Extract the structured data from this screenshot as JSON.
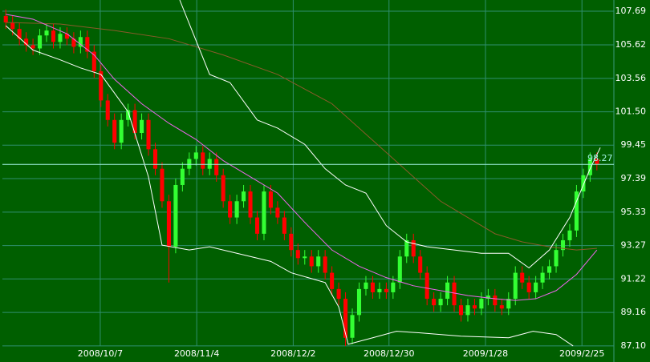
{
  "chart_data": {
    "type": "candlestick",
    "xlim": [
      -0.5,
      89.5
    ],
    "xticks": [
      {
        "value": 13.9,
        "label": "2008/10/7"
      },
      {
        "value": 28.1,
        "label": "2008/11/4"
      },
      {
        "value": 42.3,
        "label": "2008/12/2"
      },
      {
        "value": 56.4,
        "label": "2008/12/30"
      },
      {
        "value": 70.6,
        "label": "2009/1/28"
      },
      {
        "value": 84.8,
        "label": "2009/2/25"
      }
    ],
    "ylim": [
      86.11,
      108.38
    ],
    "yticks": [
      {
        "value": 87.1,
        "label": "87.10"
      },
      89.16,
      91.22,
      93.27,
      95.33,
      97.39,
      99.45,
      {
        "value": 101.5,
        "label": "101.50"
      },
      103.56,
      105.62,
      107.69
    ],
    "grid": true,
    "up_color": "#33ff33",
    "down_color": "#ff0000",
    "open": [
      107.4,
      107.0,
      106.6,
      106.0,
      105.6,
      105.4,
      106.2,
      106.5,
      105.8,
      106.3,
      106.0,
      105.5,
      106.1,
      105.2,
      104.0,
      102.2,
      101.0,
      99.6,
      101.0,
      101.6,
      100.2,
      101.0,
      99.2,
      98.0,
      96.0,
      93.2,
      97.0,
      98.0,
      98.6,
      99.0,
      98.0,
      98.6,
      97.6,
      96.0,
      95.0,
      96.0,
      96.6,
      95.0,
      94.0,
      96.6,
      95.6,
      95.0,
      94.0,
      93.0,
      92.5,
      92.6,
      92.0,
      92.6,
      91.6,
      90.6,
      90.0,
      87.6,
      89.0,
      90.6,
      91.0,
      90.4,
      90.6,
      90.4,
      91.0,
      92.6,
      93.6,
      92.6,
      91.6,
      90.0,
      89.6,
      90.0,
      91.0,
      89.6,
      89.0,
      89.6,
      89.4,
      90.0,
      90.2,
      89.6,
      89.4,
      90.0,
      91.6,
      91.0,
      90.4,
      91.0,
      91.6,
      92.0,
      93.0,
      93.6,
      94.2,
      96.6,
      97.6,
      98.6
    ],
    "high": [
      107.8,
      107.4,
      107.0,
      106.4,
      106.0,
      106.6,
      106.9,
      106.9,
      106.7,
      106.7,
      106.4,
      106.5,
      106.5,
      105.6,
      104.4,
      102.6,
      101.4,
      101.4,
      102.0,
      102.0,
      101.4,
      101.4,
      99.6,
      98.4,
      96.4,
      97.4,
      98.4,
      99.0,
      99.4,
      99.4,
      99.0,
      99.0,
      98.0,
      96.4,
      96.4,
      97.0,
      97.0,
      95.4,
      97.0,
      97.0,
      96.0,
      95.4,
      94.4,
      93.4,
      93.0,
      93.0,
      93.0,
      93.0,
      92.0,
      91.0,
      90.4,
      89.4,
      91.0,
      91.4,
      91.4,
      91.0,
      91.0,
      91.4,
      93.0,
      94.0,
      94.0,
      93.0,
      92.0,
      90.4,
      90.4,
      91.4,
      91.4,
      90.0,
      90.0,
      90.0,
      90.4,
      90.6,
      90.6,
      90.0,
      90.4,
      92.0,
      92.0,
      91.4,
      91.4,
      92.0,
      92.4,
      93.4,
      94.0,
      94.6,
      97.0,
      98.0,
      99.0,
      99.0
    ],
    "low": [
      106.6,
      106.2,
      105.6,
      105.2,
      105.0,
      105.0,
      105.8,
      105.4,
      105.4,
      105.6,
      105.1,
      105.1,
      104.8,
      103.6,
      101.8,
      100.6,
      99.2,
      99.2,
      100.6,
      99.8,
      99.8,
      98.8,
      97.6,
      95.6,
      91.0,
      92.8,
      96.6,
      97.6,
      98.2,
      97.6,
      97.6,
      97.2,
      95.6,
      94.6,
      94.6,
      95.6,
      94.6,
      93.6,
      93.6,
      95.2,
      94.6,
      93.6,
      92.6,
      92.1,
      92.1,
      91.6,
      91.6,
      91.2,
      90.2,
      89.6,
      87.1,
      87.2,
      88.6,
      90.2,
      90.0,
      90.0,
      90.0,
      90.0,
      90.6,
      92.2,
      92.2,
      91.2,
      89.6,
      89.2,
      89.2,
      89.6,
      89.2,
      88.6,
      88.6,
      89.0,
      89.0,
      89.6,
      89.2,
      89.0,
      89.0,
      89.6,
      90.6,
      90.0,
      90.0,
      90.6,
      91.2,
      91.6,
      92.6,
      93.2,
      93.8,
      96.2,
      97.2,
      97.9
    ],
    "close": [
      107.0,
      106.6,
      106.0,
      105.6,
      105.4,
      106.2,
      106.5,
      105.8,
      106.3,
      106.0,
      105.5,
      106.1,
      105.2,
      104.0,
      102.2,
      101.0,
      99.6,
      101.0,
      101.6,
      100.2,
      101.0,
      99.2,
      98.0,
      96.0,
      93.2,
      97.0,
      98.0,
      98.6,
      99.0,
      98.0,
      98.6,
      97.6,
      96.0,
      95.0,
      96.0,
      96.6,
      95.0,
      94.0,
      96.6,
      95.6,
      95.0,
      94.0,
      93.0,
      92.5,
      92.6,
      92.0,
      92.6,
      91.6,
      90.6,
      90.0,
      87.6,
      89.0,
      90.6,
      91.0,
      90.4,
      90.6,
      90.4,
      91.0,
      92.6,
      93.6,
      92.6,
      91.6,
      90.0,
      89.6,
      90.0,
      91.0,
      89.6,
      89.0,
      89.6,
      89.4,
      90.0,
      90.2,
      89.6,
      89.4,
      90.0,
      91.6,
      91.0,
      90.4,
      91.0,
      91.6,
      92.0,
      93.0,
      93.6,
      94.2,
      96.6,
      97.6,
      98.6,
      98.27
    ],
    "lines": [
      {
        "color": "#8b5a2b",
        "x": [
          0,
          8,
          16,
          24,
          32,
          40,
          48,
          56,
          60,
          64,
          68,
          72,
          76,
          80,
          84,
          87
        ],
        "values": [
          107.0,
          106.9,
          106.5,
          106.0,
          105.0,
          103.8,
          102.0,
          99.0,
          97.5,
          96.0,
          95.0,
          94.0,
          93.5,
          93.2,
          93.0,
          93.1
        ]
      },
      {
        "color": "#ee66ee",
        "x": [
          0,
          4,
          9,
          13,
          16,
          20,
          24,
          28,
          32,
          36,
          40,
          44,
          48,
          52,
          56,
          60,
          64,
          68,
          72,
          75,
          78,
          81,
          84,
          87
        ],
        "values": [
          107.5,
          107.2,
          106.3,
          105.0,
          103.5,
          102.0,
          100.8,
          99.8,
          98.5,
          97.5,
          96.5,
          94.7,
          93.0,
          92.0,
          91.3,
          90.8,
          90.5,
          90.2,
          90.0,
          89.9,
          90.0,
          90.5,
          91.5,
          93.0
        ]
      },
      {
        "color": "#ffffff",
        "x": [
          25.6,
          30,
          33,
          37,
          40,
          44,
          47,
          50,
          53,
          56,
          59,
          62,
          66,
          70,
          74,
          77,
          80,
          83,
          86,
          87.5
        ],
        "values": [
          108.38,
          103.8,
          103.3,
          101.0,
          100.5,
          99.5,
          98.0,
          97.0,
          96.5,
          94.5,
          93.5,
          93.2,
          93.0,
          92.8,
          92.8,
          91.9,
          93.0,
          95.0,
          98.0,
          99.3
        ]
      },
      {
        "color": "#ffffff",
        "x": [
          0,
          4,
          8,
          11,
          14,
          18,
          21,
          23,
          27,
          30,
          35,
          39,
          42,
          47,
          49,
          50.4,
          54,
          57.5,
          61,
          67,
          74,
          77.6,
          81,
          83.5
        ],
        "values": [
          106.8,
          105.3,
          104.7,
          104.2,
          103.8,
          101.5,
          97.5,
          93.3,
          93.0,
          93.2,
          92.7,
          92.3,
          91.6,
          91.0,
          89.5,
          87.2,
          87.6,
          88.0,
          87.9,
          87.7,
          87.6,
          88.0,
          87.8,
          87.1
        ]
      }
    ],
    "last_price": 98.27,
    "last_price_color": "#9ff0e0"
  }
}
